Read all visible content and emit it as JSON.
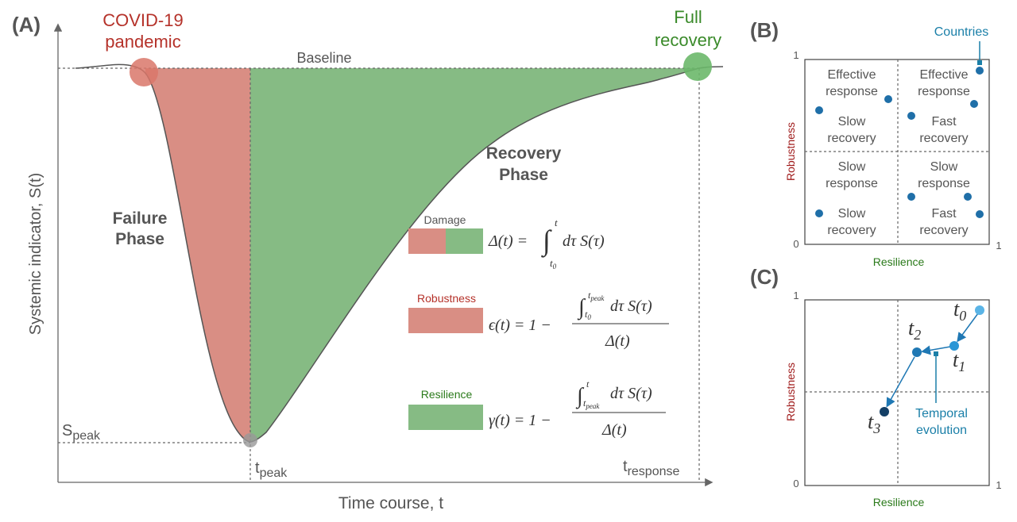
{
  "panel_a": {
    "label": "(A)",
    "event": [
      "COVID-19",
      "pandemic"
    ],
    "recovery": [
      "Full",
      "recovery"
    ],
    "baseline": "Baseline",
    "y_axis_title": "Systemic indicator, S(t)",
    "x_axis_title": "Time course, t",
    "failure_phase": [
      "Failure",
      "Phase"
    ],
    "recovery_phase": [
      "Recovery",
      "Phase"
    ],
    "s_peak": {
      "main": "S",
      "sub": "peak"
    },
    "t_peak": {
      "main": "t",
      "sub": "peak"
    },
    "t_response": {
      "main": "t",
      "sub": "response"
    }
  },
  "legend": [
    {
      "label": "Damage",
      "lhs": "Δ(t) =",
      "integral": "∫",
      "upper": "t",
      "lower": {
        "main": "t",
        "sub": "0"
      },
      "integrand": "dτ S(τ)"
    },
    {
      "label": "Robustness",
      "lhs": "ϵ(t) = 1 −",
      "integral": "∫",
      "upper": {
        "main": "t",
        "sub": "peak"
      },
      "lower": {
        "main": "t",
        "sub": "0"
      },
      "integrand": "dτ S(τ)",
      "denominator": "Δ(t)"
    },
    {
      "label": "Resilience",
      "lhs": "γ(t) = 1 −",
      "integral": "∫",
      "upper": "t",
      "lower": {
        "main": "t",
        "sub": "peak"
      },
      "integrand": "dτ S(τ)",
      "denominator": "Δ(t)"
    }
  ],
  "panel_b": {
    "label": "(B)",
    "annotation": "Countries",
    "y_max": "1",
    "origin": "0",
    "x_max": "1",
    "y_axis_title": "Robustness",
    "x_axis_title": "Resilience",
    "quadrants": [
      [
        "Effective",
        "response",
        "Slow",
        "recovery"
      ],
      [
        "Effective",
        "response",
        "Fast",
        "recovery"
      ],
      [
        "Slow",
        "response",
        "Slow",
        "recovery"
      ],
      [
        "Slow",
        "response",
        "Fast",
        "recovery"
      ]
    ]
  },
  "panel_c": {
    "label": "(C)",
    "y_max": "1",
    "origin": "0",
    "x_max": "1",
    "y_axis_title": "Robustness",
    "x_axis_title": "Resilience",
    "points": [
      {
        "main": "t",
        "sub": "0"
      },
      {
        "main": "t",
        "sub": "1"
      },
      {
        "main": "t",
        "sub": "2"
      },
      {
        "main": "t",
        "sub": "3"
      }
    ],
    "annotation": [
      "Temporal",
      "evolution"
    ]
  }
}
